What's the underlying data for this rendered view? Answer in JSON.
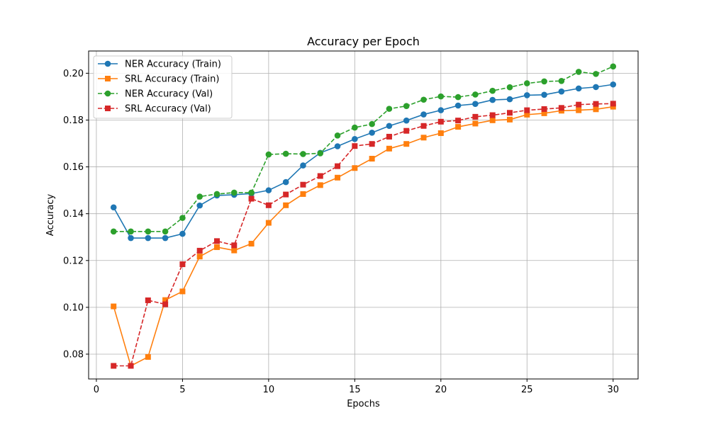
{
  "chart_data": {
    "type": "line",
    "title": "Accuracy per Epoch",
    "xlabel": "Epochs",
    "ylabel": "Accuracy",
    "xlim": [
      -0.45,
      31.45
    ],
    "ylim": [
      0.0694,
      0.2095
    ],
    "xticks": [
      0,
      5,
      10,
      15,
      20,
      25,
      30
    ],
    "xtick_labels": [
      "0",
      "5",
      "10",
      "15",
      "20",
      "25",
      "30"
    ],
    "yticks": [
      0.08,
      0.1,
      0.12,
      0.14,
      0.16,
      0.18,
      0.2
    ],
    "ytick_labels": [
      "0.08",
      "0.10",
      "0.12",
      "0.14",
      "0.16",
      "0.18",
      "0.20"
    ],
    "grid": true,
    "legend_position": "upper-left",
    "x": [
      1,
      2,
      3,
      4,
      5,
      6,
      7,
      8,
      9,
      10,
      11,
      12,
      13,
      14,
      15,
      16,
      17,
      18,
      19,
      20,
      21,
      22,
      23,
      24,
      25,
      26,
      27,
      28,
      29,
      30
    ],
    "series": [
      {
        "name": "NER Accuracy (Train)",
        "color": "#1f77b4",
        "linestyle": "solid",
        "marker": "circle",
        "values": [
          0.1427,
          0.1296,
          0.1296,
          0.1296,
          0.1314,
          0.1435,
          0.1478,
          0.1481,
          0.1486,
          0.15,
          0.1535,
          0.1606,
          0.166,
          0.1688,
          0.1719,
          0.1746,
          0.1775,
          0.1798,
          0.1824,
          0.1842,
          0.1862,
          0.1869,
          0.1886,
          0.1889,
          0.1906,
          0.1908,
          0.1922,
          0.1935,
          0.1941,
          0.1952
        ]
      },
      {
        "name": "SRL Accuracy (Train)",
        "color": "#ff7f0e",
        "linestyle": "solid",
        "marker": "square",
        "values": [
          0.1004,
          0.075,
          0.0788,
          0.1031,
          0.1068,
          0.1217,
          0.1257,
          0.1243,
          0.1272,
          0.1361,
          0.1436,
          0.1484,
          0.1522,
          0.1554,
          0.1595,
          0.1635,
          0.1678,
          0.1698,
          0.1725,
          0.1744,
          0.1771,
          0.1785,
          0.1799,
          0.1802,
          0.1823,
          0.1829,
          0.184,
          0.1842,
          0.1846,
          0.1857
        ]
      },
      {
        "name": "NER Accuracy (Val)",
        "color": "#2ca02c",
        "linestyle": "dashed",
        "marker": "circle",
        "values": [
          0.1324,
          0.1324,
          0.1324,
          0.1324,
          0.1382,
          0.1473,
          0.1484,
          0.149,
          0.149,
          0.1653,
          0.1656,
          0.1655,
          0.1658,
          0.1734,
          0.1768,
          0.1783,
          0.1848,
          0.186,
          0.1887,
          0.1901,
          0.1898,
          0.1909,
          0.1925,
          0.194,
          0.1957,
          0.1965,
          0.1967,
          0.2006,
          0.1997,
          0.2029
        ]
      },
      {
        "name": "SRL Accuracy (Val)",
        "color": "#d62728",
        "linestyle": "dashed",
        "marker": "square",
        "values": [
          0.075,
          0.075,
          0.103,
          0.1013,
          0.1184,
          0.1242,
          0.1283,
          0.1265,
          0.1464,
          0.1436,
          0.1482,
          0.1524,
          0.1561,
          0.1603,
          0.1689,
          0.1698,
          0.1729,
          0.1754,
          0.1775,
          0.1793,
          0.1798,
          0.1814,
          0.1821,
          0.1831,
          0.1842,
          0.1847,
          0.1852,
          0.1866,
          0.1869,
          0.187
        ]
      }
    ]
  }
}
